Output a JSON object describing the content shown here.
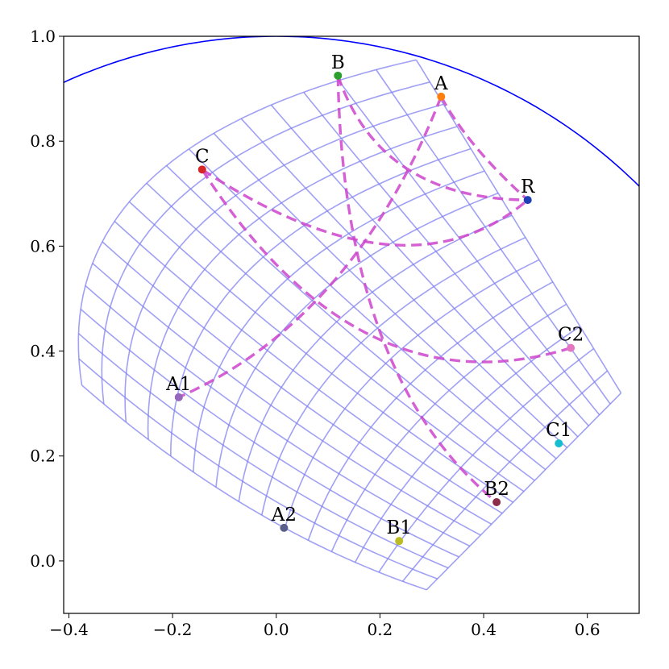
{
  "chart_data": {
    "type": "scatter",
    "xlim": [
      -0.41,
      0.7
    ],
    "ylim": [
      -0.1,
      1.0
    ],
    "x_ticks": [
      -0.4,
      -0.2,
      0.0,
      0.2,
      0.4,
      0.6
    ],
    "x_tick_labels": [
      "−0.4",
      "−0.2",
      "0.0",
      "0.2",
      "0.4",
      "0.6"
    ],
    "y_ticks": [
      0.0,
      0.2,
      0.4,
      0.6,
      0.8,
      1.0
    ],
    "y_tick_labels": [
      "0.0",
      "0.2",
      "0.4",
      "0.6",
      "0.8",
      "1.0"
    ],
    "grid": false,
    "unit_circle": {
      "center": [
        0,
        0
      ],
      "radius": 1.0,
      "color": "#0000ff"
    },
    "mesh": {
      "color": "#8080f0",
      "corners": {
        "a": [
          -0.375,
          0.335
        ],
        "b": [
          0.27,
          0.955
        ],
        "c": [
          0.665,
          0.32
        ],
        "d": [
          0.29,
          -0.055
        ]
      },
      "left_edge_bulge": [
        -0.25,
        0.72
      ],
      "bottom_edge_bulge": [
        -0.05,
        0.1
      ],
      "divisions_u": 18,
      "divisions_v": 15
    },
    "points": [
      {
        "label": "A",
        "x": 0.318,
        "y": 0.885,
        "color": "#ff7f0e"
      },
      {
        "label": "B",
        "x": 0.119,
        "y": 0.925,
        "color": "#2ca02c"
      },
      {
        "label": "C",
        "x": -0.143,
        "y": 0.746,
        "color": "#d62728"
      },
      {
        "label": "R",
        "x": 0.485,
        "y": 0.688,
        "color": "#1f3fb4"
      },
      {
        "label": "A1",
        "x": -0.188,
        "y": 0.312,
        "color": "#9467bd"
      },
      {
        "label": "A2",
        "x": 0.015,
        "y": 0.063,
        "color": "#5a5f8a"
      },
      {
        "label": "B1",
        "x": 0.237,
        "y": 0.038,
        "color": "#bcbd22"
      },
      {
        "label": "B2",
        "x": 0.425,
        "y": 0.112,
        "color": "#8c2d4b"
      },
      {
        "label": "C1",
        "x": 0.545,
        "y": 0.224,
        "color": "#17becf"
      },
      {
        "label": "C2",
        "x": 0.568,
        "y": 0.406,
        "color": "#e377c2"
      }
    ],
    "dashed_arcs": {
      "color": "#cc44cc",
      "curves": [
        [
          [
            0.318,
            0.885
          ],
          [
            0.37,
            0.79
          ],
          [
            0.485,
            0.688
          ]
        ],
        [
          [
            0.119,
            0.925
          ],
          [
            0.2,
            0.69
          ],
          [
            0.485,
            0.688
          ]
        ],
        [
          [
            -0.143,
            0.746
          ],
          [
            0.25,
            0.49
          ],
          [
            0.485,
            0.688
          ]
        ],
        [
          [
            0.318,
            0.885
          ],
          [
            0.15,
            0.46
          ],
          [
            -0.188,
            0.312
          ]
        ],
        [
          [
            0.119,
            0.925
          ],
          [
            0.13,
            0.35
          ],
          [
            0.425,
            0.112
          ]
        ],
        [
          [
            -0.143,
            0.746
          ],
          [
            0.16,
            0.28
          ],
          [
            0.568,
            0.406
          ]
        ]
      ]
    }
  }
}
